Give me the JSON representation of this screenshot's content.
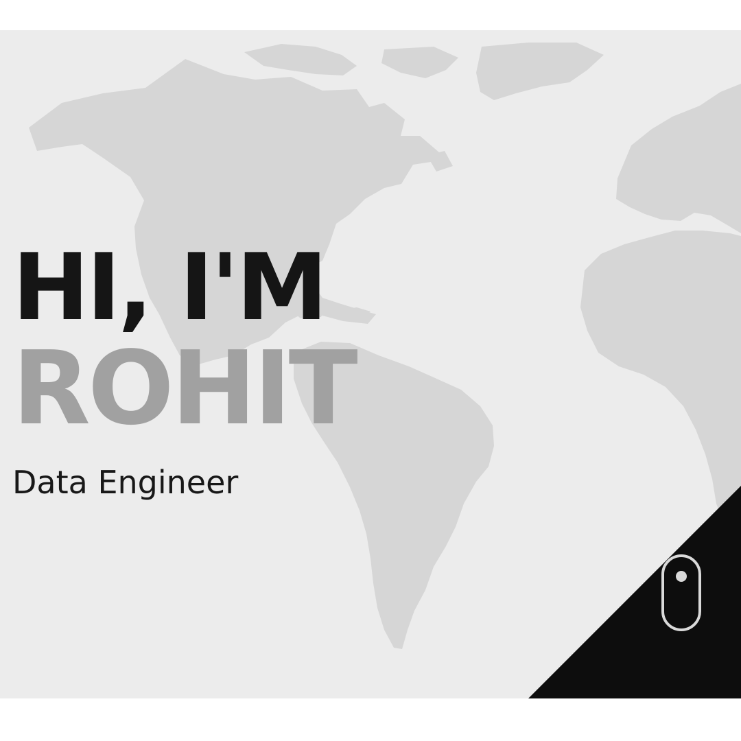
{
  "hero": {
    "greeting": "HI, I'M",
    "name": "ROHIT",
    "role": "Data Engineer"
  },
  "background": {
    "map_icon": "world-map-background"
  },
  "controls": {
    "scroll_icon": "mouse-scroll-icon"
  },
  "colors": {
    "page_background": "#ffffff",
    "hero_background": "#ececec",
    "map_land": "#d6d6d6",
    "headline": "#151515",
    "name": "#a1a1a1",
    "corner_panel": "#0d0d0d",
    "scroll_icon": "#d9d9d9"
  }
}
